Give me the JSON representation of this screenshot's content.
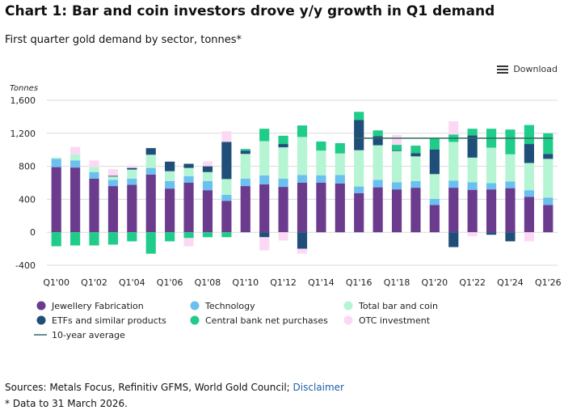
{
  "header": {
    "title": "Chart 1: Bar and coin investors drove y/y growth in Q1 demand",
    "subtitle": "First quarter gold demand by sector, tonnes*",
    "download_label": "Download"
  },
  "footer": {
    "sources_label": "Sources: Metals Focus, Refinitiv GFMS, World Gold Council; ",
    "disclaimer_link": "Disclaimer",
    "note": "* Data to 31 March 2026."
  },
  "colors": {
    "jewellery": "#6b3b8e",
    "technology": "#6bc0f0",
    "bar_coin": "#b5f5d3",
    "etf": "#1f4e79",
    "central_bank": "#1fcc8a",
    "otc": "#fbd9f4",
    "average": "#2f6b5e"
  },
  "chart_data": {
    "type": "bar",
    "stacked": true,
    "ylabel": "Tonnes",
    "ylim": [
      -400,
      1600
    ],
    "yticks": [
      -400,
      0,
      400,
      800,
      1200,
      1600
    ],
    "ytick_labels": [
      "-400",
      "0",
      "400",
      "800",
      "1,200",
      "1,600"
    ],
    "grid": true,
    "legend_position": "bottom",
    "categories": [
      "Q1'00",
      "Q1'01",
      "Q1'02",
      "Q1'03",
      "Q1'04",
      "Q1'05",
      "Q1'06",
      "Q1'07",
      "Q1'08",
      "Q1'09",
      "Q1'10",
      "Q1'11",
      "Q1'12",
      "Q1'13",
      "Q1'14",
      "Q1'15",
      "Q1'16",
      "Q1'17",
      "Q1'18",
      "Q1'19",
      "Q1'20",
      "Q1'21",
      "Q1'22",
      "Q1'23",
      "Q1'24",
      "Q1'25",
      "Q1'26"
    ],
    "xtick_labels": [
      "Q1'00",
      "Q1'02",
      "Q1'04",
      "Q1'06",
      "Q1'08",
      "Q1'10",
      "Q1'12",
      "Q1'14",
      "Q1'16",
      "Q1'18",
      "Q1'20",
      "Q1'22",
      "Q1'24",
      "Q1'26"
    ],
    "series": [
      {
        "name": "Jewellery Fabrication",
        "key": "jewellery",
        "values": [
          790,
          785,
          650,
          560,
          575,
          700,
          530,
          600,
          510,
          380,
          560,
          580,
          550,
          600,
          600,
          590,
          475,
          545,
          520,
          540,
          330,
          540,
          515,
          520,
          535,
          430,
          330
        ]
      },
      {
        "name": "Technology",
        "key": "technology",
        "values": [
          100,
          85,
          80,
          75,
          75,
          80,
          90,
          80,
          110,
          75,
          90,
          110,
          100,
          95,
          90,
          105,
          80,
          90,
          85,
          80,
          75,
          85,
          90,
          75,
          80,
          80,
          90
        ]
      },
      {
        "name": "Total bar and coin",
        "key": "bar_coin",
        "values": [
          15,
          75,
          60,
          40,
          110,
          160,
          120,
          100,
          110,
          190,
          300,
          415,
          380,
          460,
          300,
          260,
          440,
          420,
          380,
          300,
          300,
          470,
          300,
          430,
          330,
          330,
          470
        ]
      },
      {
        "name": "ETFs and similar products",
        "key": "etf",
        "values": [
          0,
          0,
          0,
          10,
          20,
          80,
          115,
          50,
          70,
          450,
          40,
          -60,
          40,
          -200,
          0,
          0,
          365,
          110,
          10,
          40,
          300,
          -180,
          270,
          -30,
          -110,
          230,
          60
        ]
      },
      {
        "name": "Central bank net purchases",
        "key": "central_bank",
        "values": [
          -170,
          -160,
          -160,
          -150,
          -110,
          -260,
          -110,
          -70,
          -60,
          -60,
          20,
          150,
          100,
          140,
          110,
          125,
          100,
          70,
          65,
          90,
          130,
          90,
          80,
          230,
          300,
          230,
          250
        ]
      },
      {
        "name": "OTC investment",
        "key": "otc",
        "values": [
          0,
          90,
          80,
          80,
          30,
          0,
          10,
          -100,
          60,
          130,
          0,
          -160,
          -100,
          -60,
          0,
          0,
          0,
          0,
          120,
          0,
          0,
          160,
          -50,
          0,
          0,
          -110,
          0
        ]
      }
    ],
    "reference_line": {
      "name": "10-year average",
      "value": 1140,
      "from": "Q1'16",
      "to": "Q1'26"
    }
  }
}
